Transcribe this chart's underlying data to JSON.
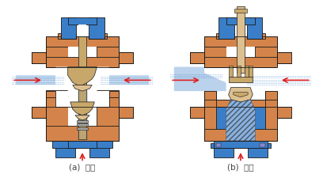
{
  "fig_width": 4.08,
  "fig_height": 2.26,
  "dpi": 100,
  "bg_color": "#ffffff",
  "orange": "#D4844A",
  "blue": "#3A7EC8",
  "blue_dark": "#2A6AAA",
  "tan": "#C8A86A",
  "tan_light": "#DDC090",
  "red": "#DD2222",
  "label_a": "(a)  分流",
  "label_b": "(b)  合流",
  "label_color": "#444444",
  "label_fontsize": 7.5
}
